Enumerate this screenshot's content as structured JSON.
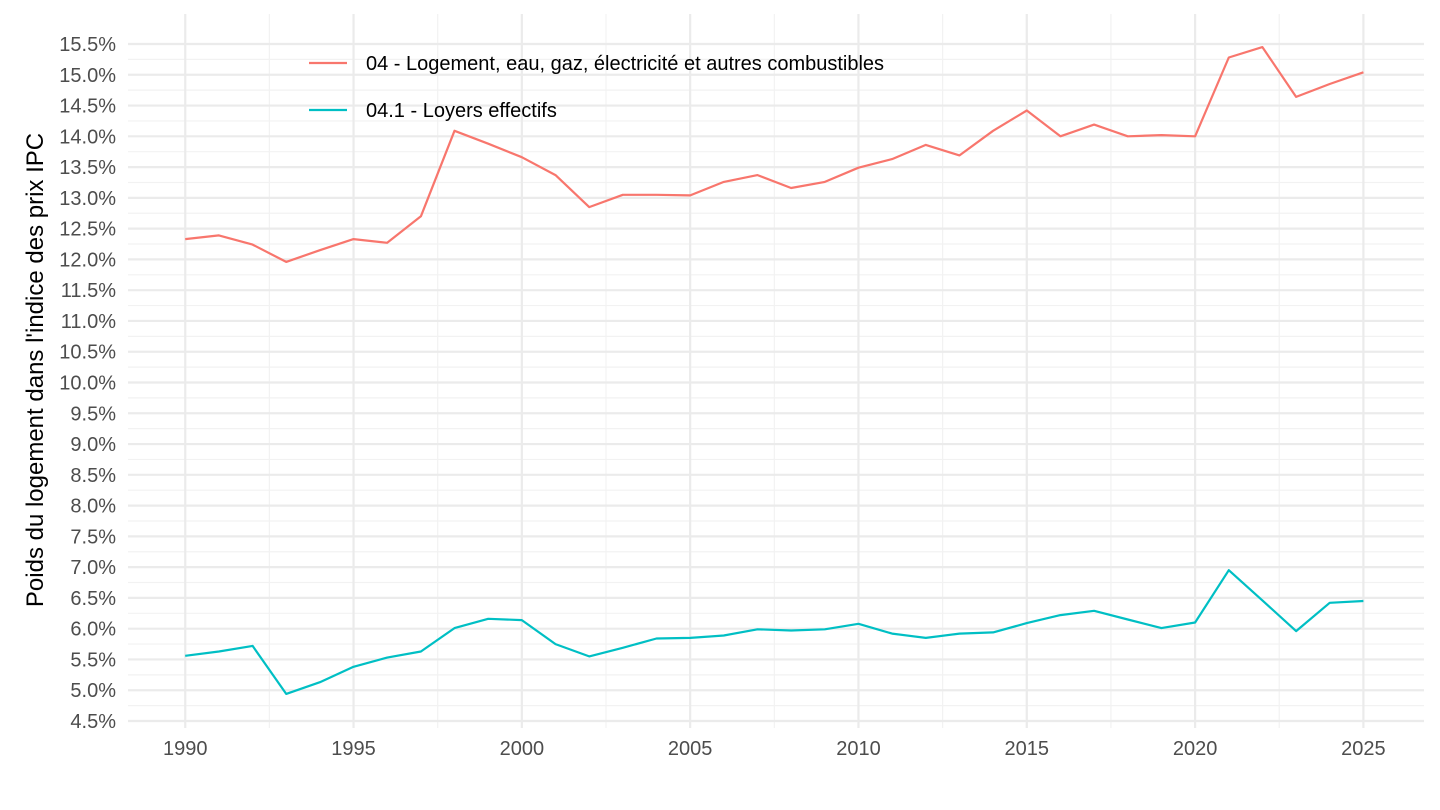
{
  "chart_data": {
    "type": "line",
    "title": "",
    "xlabel": "",
    "ylabel": "Poids du logement dans l'indice des prix IPC",
    "xlim": [
      1988.3,
      2026.8
    ],
    "ylim": [
      4.5,
      15.5
    ],
    "x_ticks": [
      "1990",
      "1995",
      "2000",
      "2005",
      "2010",
      "2015",
      "2020",
      "2025"
    ],
    "y_ticks": [
      "4.5%",
      "5.0%",
      "5.5%",
      "6.0%",
      "6.5%",
      "7.0%",
      "7.5%",
      "8.0%",
      "8.5%",
      "9.0%",
      "9.5%",
      "10.0%",
      "10.5%",
      "11.0%",
      "11.5%",
      "12.0%",
      "12.5%",
      "13.0%",
      "13.5%",
      "14.0%",
      "14.5%",
      "15.0%",
      "15.5%"
    ],
    "grid": true,
    "legend_position": "top-left",
    "x": [
      1990,
      1991,
      1992,
      1993,
      1994,
      1995,
      1996,
      1997,
      1998,
      1999,
      2000,
      2001,
      2002,
      2003,
      2004,
      2005,
      2006,
      2007,
      2008,
      2009,
      2010,
      2011,
      2012,
      2013,
      2014,
      2015,
      2016,
      2017,
      2018,
      2019,
      2020,
      2021,
      2022,
      2023,
      2024,
      2025
    ],
    "series": [
      {
        "name": "04 - Logement, eau, gaz, électricité et autres combustibles",
        "color": "#F8766D",
        "values": [
          12.33,
          12.39,
          12.24,
          11.96,
          12.15,
          12.33,
          12.27,
          12.7,
          14.09,
          13.88,
          13.66,
          13.37,
          12.85,
          13.05,
          13.05,
          13.04,
          13.26,
          13.37,
          13.16,
          13.26,
          13.49,
          13.63,
          13.86,
          13.69,
          14.09,
          14.42,
          14.0,
          14.19,
          14.0,
          14.02,
          14.0,
          15.28,
          15.45,
          14.64,
          14.85,
          15.04
        ]
      },
      {
        "name": "04.1 - Loyers effectifs",
        "color": "#00BFC4",
        "values": [
          5.56,
          5.63,
          5.72,
          4.94,
          5.13,
          5.38,
          5.53,
          5.63,
          6.01,
          6.16,
          6.14,
          5.75,
          5.55,
          5.69,
          5.84,
          5.85,
          5.89,
          5.99,
          5.97,
          5.99,
          6.08,
          5.92,
          5.85,
          5.92,
          5.94,
          6.09,
          6.22,
          6.29,
          6.15,
          6.01,
          6.1,
          6.95,
          6.46,
          5.96,
          6.42,
          6.45
        ]
      }
    ]
  }
}
